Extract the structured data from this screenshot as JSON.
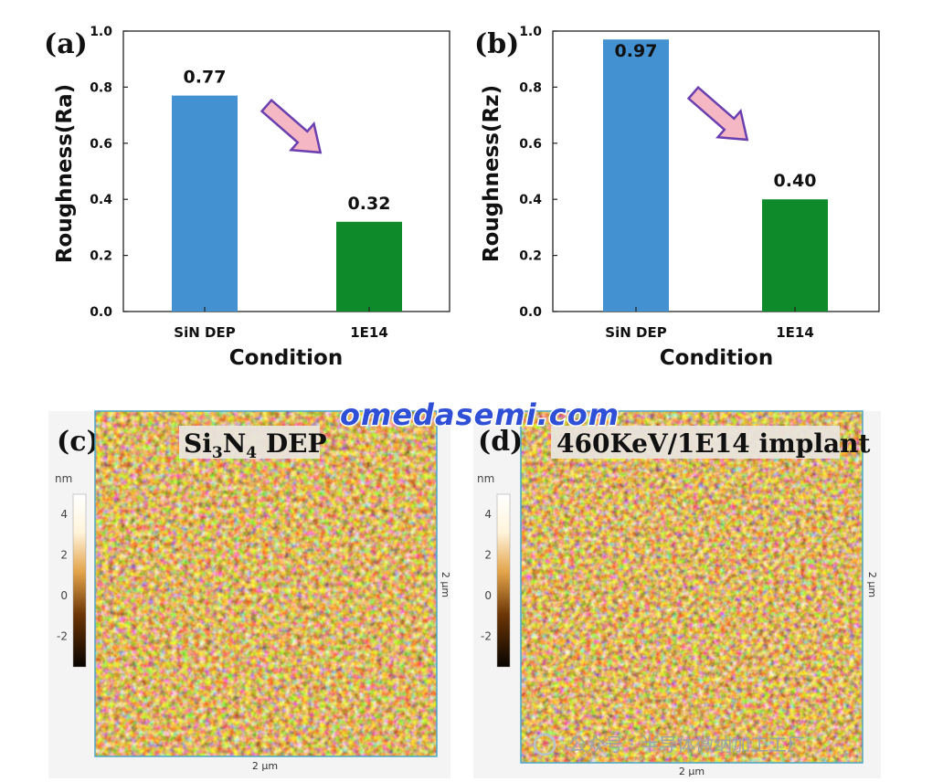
{
  "chart_data": [
    {
      "type": "bar",
      "panel": "(a)",
      "categories": [
        "SiN DEP",
        "1E14"
      ],
      "values": [
        0.77,
        0.32
      ],
      "value_labels": [
        "0.77",
        "0.32"
      ],
      "colors": [
        "#4391d1",
        "#0f8a2a"
      ],
      "xlabel": "Condition",
      "ylabel": "Roughness(Ra)",
      "ylim": [
        0,
        1.0
      ],
      "yticks": [
        "0.0",
        "0.2",
        "0.4",
        "0.6",
        "0.8",
        "1.0"
      ],
      "yticks_values": [
        0,
        0.2,
        0.4,
        0.6,
        0.8,
        1.0
      ],
      "annotation": "down-arrow"
    },
    {
      "type": "bar",
      "panel": "(b)",
      "categories": [
        "SiN DEP",
        "1E14"
      ],
      "values": [
        0.97,
        0.4
      ],
      "value_labels": [
        "0.97",
        "0.40"
      ],
      "colors": [
        "#4391d1",
        "#0f8a2a"
      ],
      "xlabel": "Condition",
      "ylabel": "Roughness(Rz)",
      "ylim": [
        0,
        1.0
      ],
      "yticks": [
        "0.0",
        "0.2",
        "0.4",
        "0.6",
        "0.8",
        "1.0"
      ],
      "yticks_values": [
        0,
        0.2,
        0.4,
        0.6,
        0.8,
        1.0
      ],
      "annotation": "down-arrow"
    }
  ],
  "afm": [
    {
      "panel": "(c)",
      "title_main": "Si",
      "title_sub1": "3",
      "title_mid": "N",
      "title_sub2": "4",
      "title_end": " DEP",
      "unit": "nm",
      "colorbar_ticks": [
        "4",
        "2",
        "0",
        "-2"
      ],
      "colorbar_values": [
        4,
        2,
        0,
        -2
      ],
      "x_scale": "2 µm",
      "y_scale": "2 µm"
    },
    {
      "panel": "(d)",
      "title": "460KeV/1E14 implant",
      "unit": "nm",
      "colorbar_ticks": [
        "4",
        "2",
        "0",
        "-2"
      ],
      "colorbar_values": [
        4,
        2,
        0,
        -2
      ],
      "x_scale": "2 µm",
      "y_scale": "2 µm"
    }
  ],
  "watermark": "omedasemi.com",
  "credit": "公众号 · 半导体微纳加工工厂",
  "colors": {
    "arrow_fill": "#f6b7c4",
    "arrow_stroke": "#6a3fb0",
    "afm_dark": "#2a1400",
    "afm_mid": "#8a4c0a",
    "afm_light": "#ffe9b0",
    "frame_blue": "#4aa8c8"
  }
}
